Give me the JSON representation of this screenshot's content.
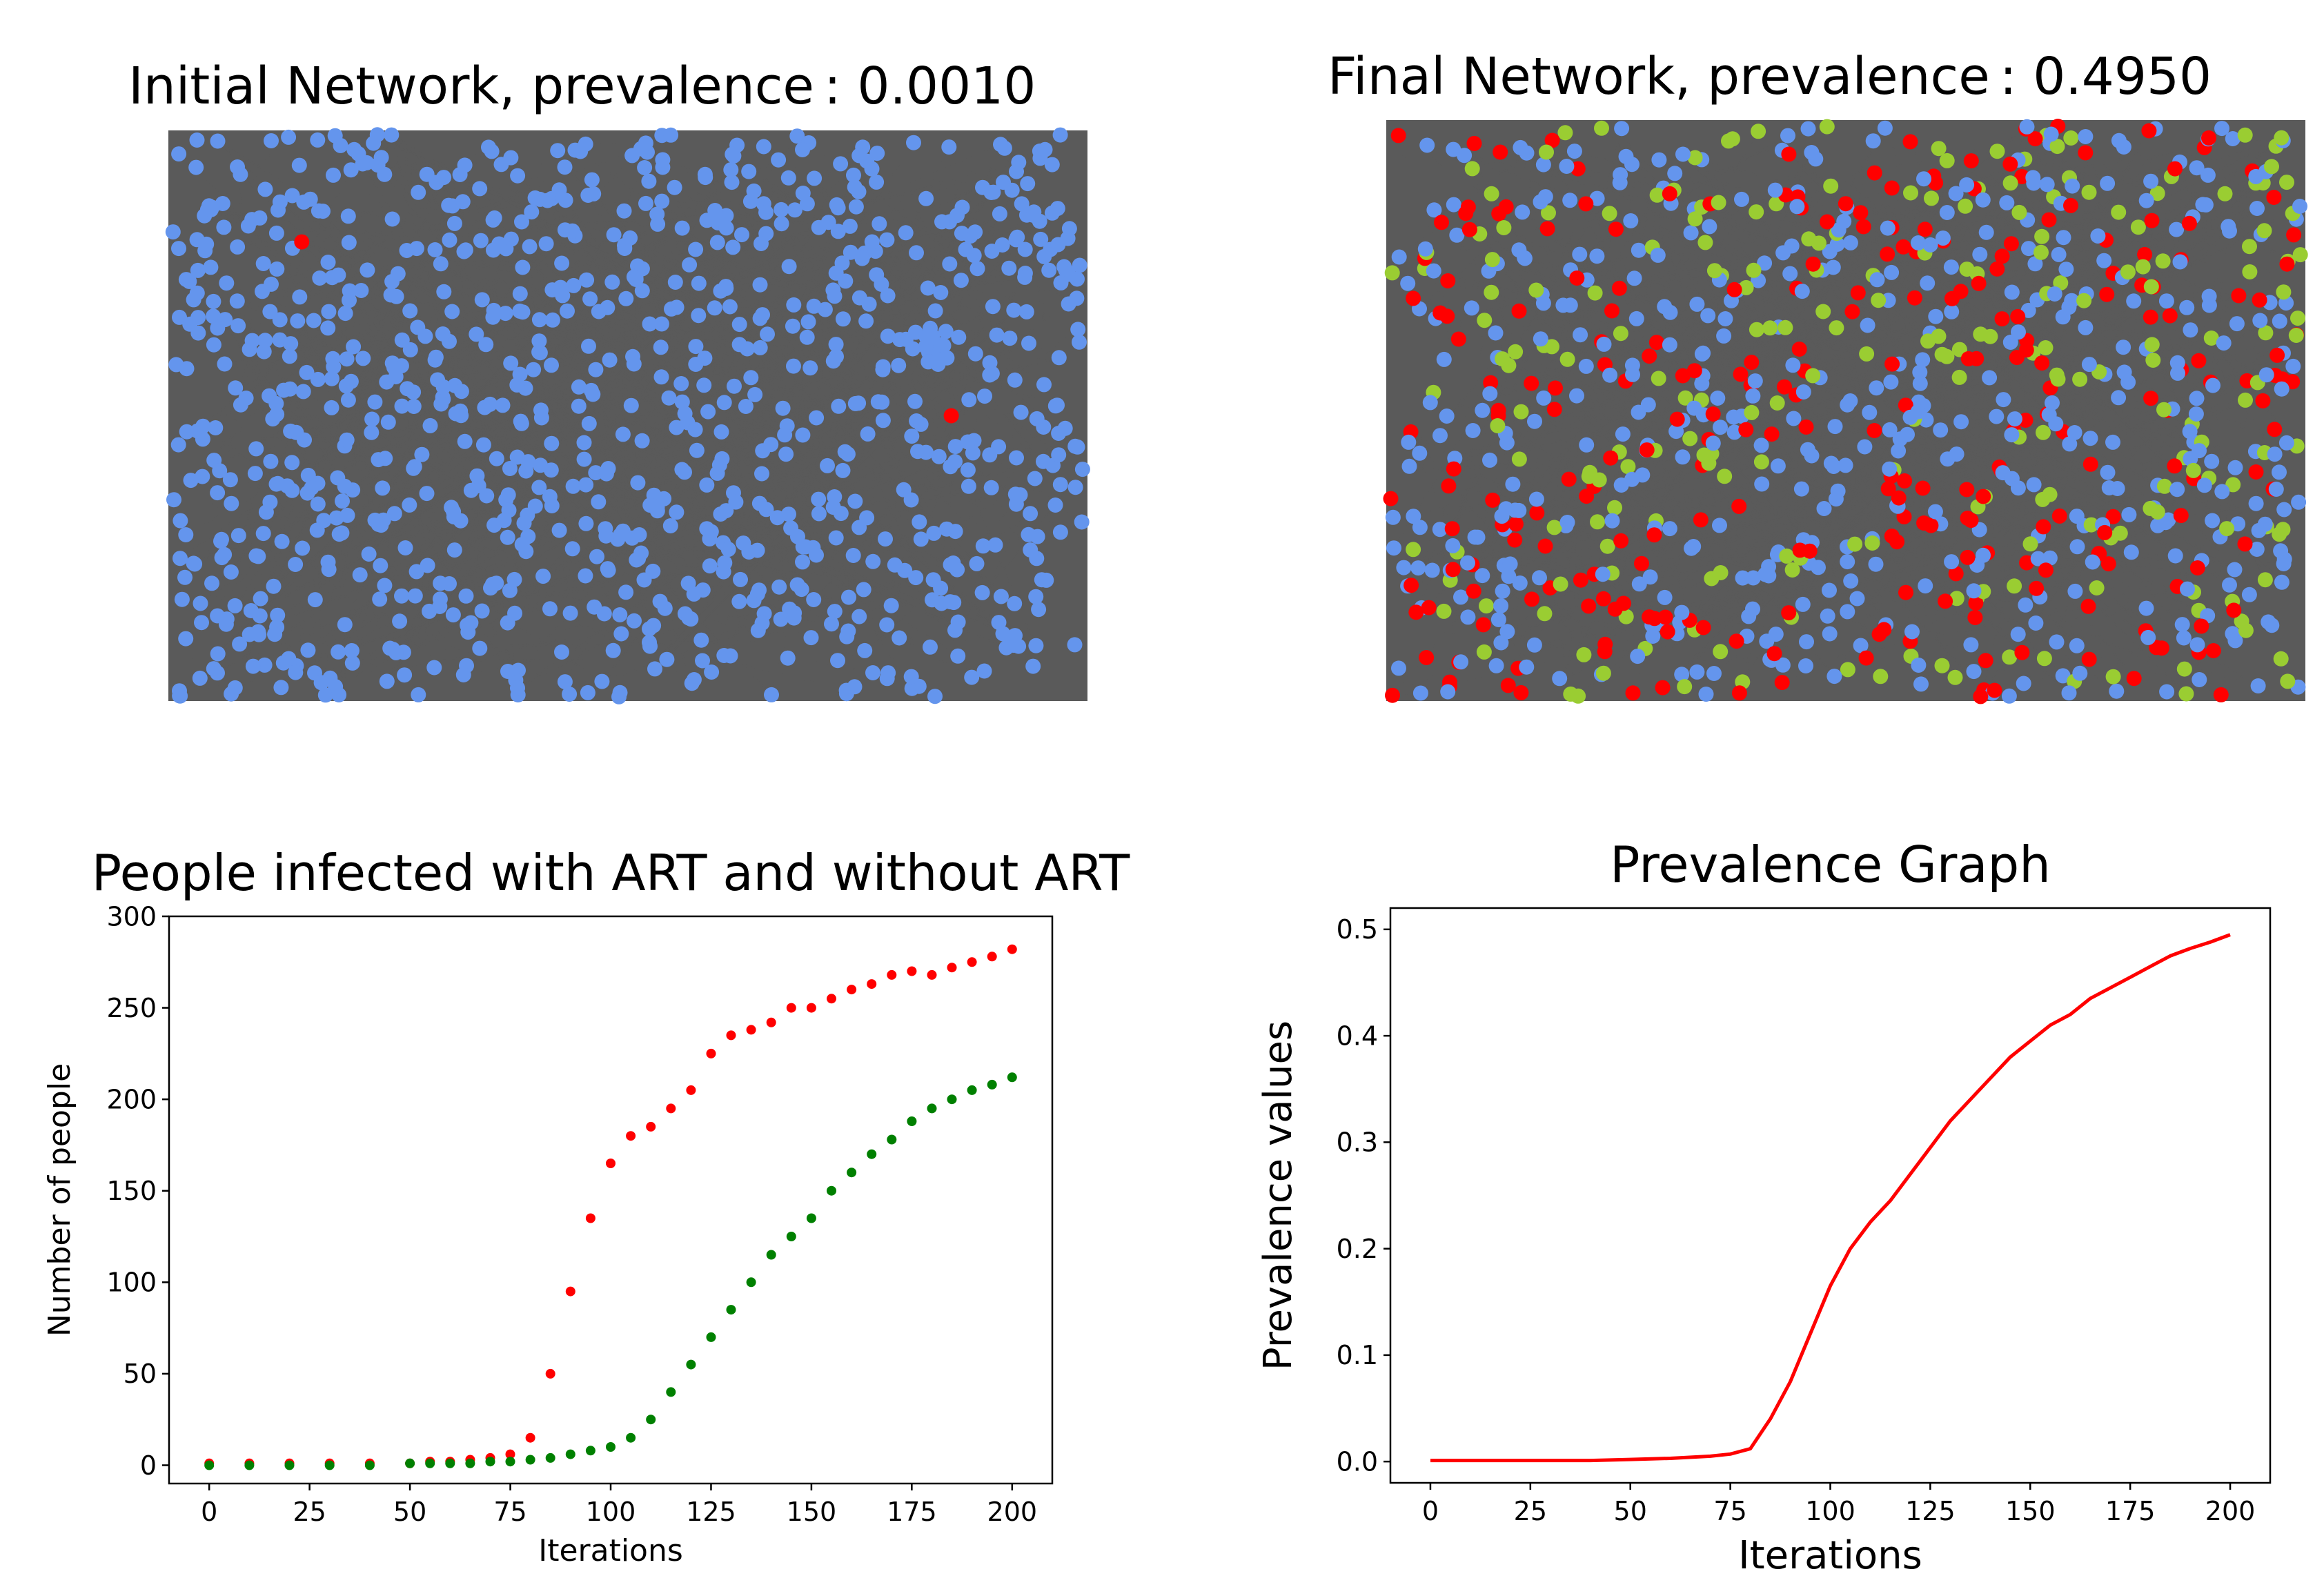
{
  "colors": {
    "susceptible": "#6495ED",
    "infected_no_art": "#FF0000",
    "infected_art": "#9ACD32",
    "edge": "#5A5A5A",
    "art_series": "#008000",
    "no_art_series": "#FF0000",
    "prevalence_line": "#FF0000"
  },
  "initial_network": {
    "title": "Initial Network, prevalence",
    "value": ": 0.0010"
  },
  "final_network": {
    "title": "Final Network, prevalence",
    "value": ": 0.4950"
  },
  "chart_data": [
    {
      "type": "scatter",
      "title": "People infected with ART and without ART",
      "xlabel": "Iterations",
      "ylabel": "Number  of people",
      "xlim": [
        -10,
        210
      ],
      "ylim": [
        -10,
        300
      ],
      "xticks": [
        "0",
        "25",
        "50",
        "75",
        "100",
        "125",
        "150",
        "175",
        "200"
      ],
      "yticks": [
        "0",
        "50",
        "100",
        "150",
        "200",
        "250",
        "300"
      ],
      "grid": false,
      "series": [
        {
          "color": "#FF0000",
          "x": [
            0,
            10,
            20,
            30,
            40,
            50,
            55,
            60,
            65,
            70,
            75,
            80,
            85,
            90,
            95,
            100,
            105,
            110,
            115,
            120,
            125,
            130,
            135,
            140,
            145,
            150,
            155,
            160,
            165,
            170,
            175,
            180,
            185,
            190,
            195,
            200
          ],
          "values": [
            1,
            1,
            1,
            1,
            1,
            1,
            2,
            2,
            3,
            4,
            6,
            15,
            50,
            95,
            135,
            165,
            180,
            185,
            195,
            205,
            225,
            235,
            238,
            242,
            250,
            250,
            255,
            260,
            263,
            268,
            270,
            268,
            272,
            275,
            278,
            282
          ]
        },
        {
          "color": "#008000",
          "x": [
            0,
            10,
            20,
            30,
            40,
            50,
            55,
            60,
            65,
            70,
            75,
            80,
            85,
            90,
            95,
            100,
            105,
            110,
            115,
            120,
            125,
            130,
            135,
            140,
            145,
            150,
            155,
            160,
            165,
            170,
            175,
            180,
            185,
            190,
            195,
            200
          ],
          "values": [
            0,
            0,
            0,
            0,
            0,
            1,
            1,
            1,
            1,
            2,
            2,
            3,
            4,
            6,
            8,
            10,
            15,
            25,
            40,
            55,
            70,
            85,
            100,
            115,
            125,
            135,
            150,
            160,
            170,
            178,
            188,
            195,
            200,
            205,
            208,
            212
          ]
        }
      ]
    },
    {
      "type": "line",
      "title": "Prevalence Graph",
      "xlabel": "Iterations",
      "ylabel": "Prevalence values",
      "xlim": [
        -10,
        210
      ],
      "ylim": [
        -0.02,
        0.52
      ],
      "xticks": [
        "0",
        "25",
        "50",
        "75",
        "100",
        "125",
        "150",
        "175",
        "200"
      ],
      "yticks": [
        "0.0",
        "0.1",
        "0.2",
        "0.3",
        "0.4",
        "0.5"
      ],
      "grid": false,
      "x": [
        0,
        10,
        20,
        30,
        40,
        50,
        60,
        70,
        75,
        80,
        85,
        90,
        95,
        100,
        105,
        110,
        115,
        120,
        125,
        130,
        135,
        140,
        145,
        150,
        155,
        160,
        165,
        170,
        175,
        180,
        185,
        190,
        195,
        200
      ],
      "values": [
        0.001,
        0.001,
        0.001,
        0.001,
        0.001,
        0.002,
        0.003,
        0.005,
        0.007,
        0.012,
        0.04,
        0.075,
        0.12,
        0.165,
        0.2,
        0.225,
        0.245,
        0.27,
        0.295,
        0.32,
        0.34,
        0.36,
        0.38,
        0.395,
        0.41,
        0.42,
        0.435,
        0.445,
        0.455,
        0.465,
        0.475,
        0.482,
        0.488,
        0.495
      ]
    }
  ]
}
